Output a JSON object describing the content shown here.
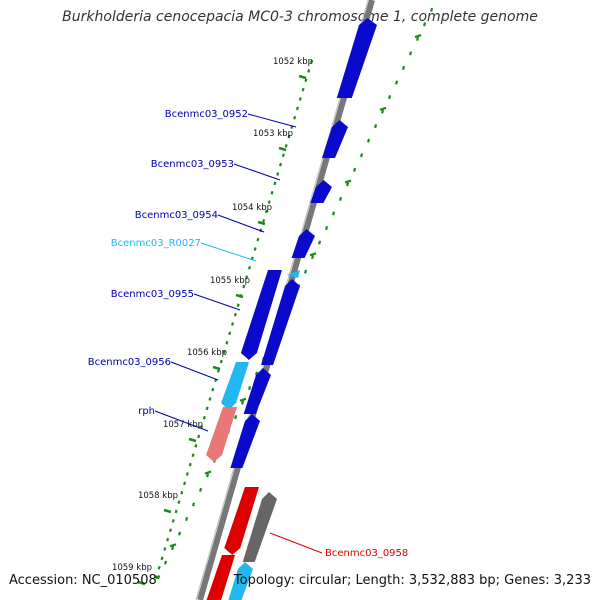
{
  "title": "Burkholderia cenocepacia MC0-3 chromosome 1, complete genome",
  "colors": {
    "background": "#ffffff",
    "backbone": "#777777",
    "tick_green": "#1a8a1a",
    "gene_blue": "#0a0acc",
    "gene_light_blue": "#22b8ee",
    "gene_red": "#dd0000",
    "gene_pink": "#e87878",
    "gene_gray": "#666666",
    "label_blue": "#0000aa",
    "label_cyan": "#22b8ee",
    "label_red": "#dd0000"
  },
  "scale_labels": [
    "1052 kbp",
    "1053 kbp",
    "1054 kbp",
    "1055 kbp",
    "1056 kbp",
    "1057 kbp",
    "1058 kbp",
    "1059 kbp"
  ],
  "gene_labels": [
    {
      "text": "Bcenmc03_0952",
      "type": "CDS"
    },
    {
      "text": "Bcenmc03_0953",
      "type": "CDS"
    },
    {
      "text": "Bcenmc03_0954",
      "type": "CDS"
    },
    {
      "text": "Bcenmc03_R0027",
      "type": "tRNA"
    },
    {
      "text": "Bcenmc03_0955",
      "type": "CDS"
    },
    {
      "text": "Bcenmc03_0956",
      "type": "CDS"
    },
    {
      "text": "rph",
      "type": "CDS"
    },
    {
      "text": "Bcenmc03_0958",
      "type": "CDS"
    }
  ],
  "footer": {
    "accession": "Accession: NC_010508",
    "topology": "Topology: circular; Length: 3,532,883 bp; Genes: 3,233"
  }
}
